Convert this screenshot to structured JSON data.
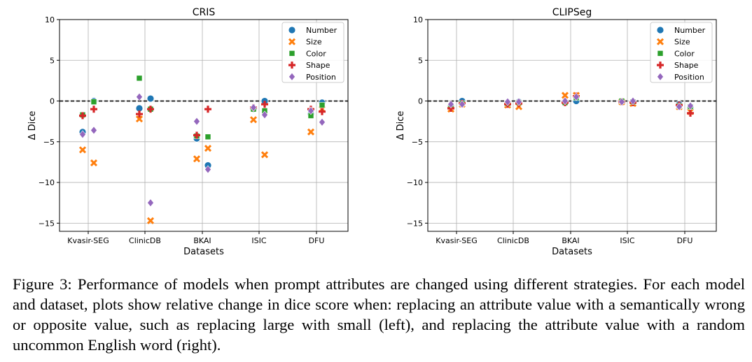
{
  "chart_data": [
    {
      "type": "scatter",
      "title": "CRIS",
      "xlabel": "Datasets",
      "ylabel": "Δ Dice",
      "categories": [
        "Kvasir-SEG",
        "ClinicDB",
        "BKAI",
        "ISIC",
        "DFU"
      ],
      "ylim": [
        -16,
        10
      ],
      "yticks": [
        10,
        5,
        0,
        -5,
        -10,
        -15
      ],
      "grid": true,
      "reference_line": 0,
      "legend_position": "top-right",
      "series": [
        {
          "name": "Number",
          "marker": "circle",
          "color": "#1f77b4",
          "points": [
            {
              "category": "Kvasir-SEG",
              "offset": -1,
              "y": -3.8
            },
            {
              "category": "Kvasir-SEG",
              "offset": 1,
              "y": 0.0
            },
            {
              "category": "ClinicDB",
              "offset": -1,
              "y": -0.9
            },
            {
              "category": "ClinicDB",
              "offset": 1,
              "y": 0.3
            },
            {
              "category": "BKAI",
              "offset": -1,
              "y": -4.6
            },
            {
              "category": "BKAI",
              "offset": 1,
              "y": -7.9
            },
            {
              "category": "ISIC",
              "offset": -1,
              "y": -1.0
            },
            {
              "category": "ISIC",
              "offset": 1,
              "y": 0.0
            },
            {
              "category": "DFU",
              "offset": -1,
              "y": -1.6
            },
            {
              "category": "DFU",
              "offset": 1,
              "y": -0.2
            }
          ]
        },
        {
          "name": "Size",
          "marker": "x",
          "color": "#ff7f0e",
          "points": [
            {
              "category": "Kvasir-SEG",
              "offset": -1,
              "y": -6.0
            },
            {
              "category": "Kvasir-SEG",
              "offset": 1,
              "y": -7.6
            },
            {
              "category": "ClinicDB",
              "offset": -1,
              "y": -2.2
            },
            {
              "category": "ClinicDB",
              "offset": 1,
              "y": -14.7
            },
            {
              "category": "BKAI",
              "offset": -1,
              "y": -7.1
            },
            {
              "category": "BKAI",
              "offset": 1,
              "y": -5.8
            },
            {
              "category": "ISIC",
              "offset": -1,
              "y": -2.3
            },
            {
              "category": "ISIC",
              "offset": 1,
              "y": -6.6
            },
            {
              "category": "DFU",
              "offset": -1,
              "y": -3.8
            },
            {
              "category": "DFU",
              "offset": 1,
              "y": -1.0
            }
          ]
        },
        {
          "name": "Color",
          "marker": "square",
          "color": "#2ca02c",
          "points": [
            {
              "category": "Kvasir-SEG",
              "offset": -1,
              "y": -1.7
            },
            {
              "category": "Kvasir-SEG",
              "offset": 1,
              "y": -0.1
            },
            {
              "category": "ClinicDB",
              "offset": -1,
              "y": 2.8
            },
            {
              "category": "ClinicDB",
              "offset": 1,
              "y": -1.0
            },
            {
              "category": "BKAI",
              "offset": -1,
              "y": -4.3
            },
            {
              "category": "BKAI",
              "offset": 1,
              "y": -4.4
            },
            {
              "category": "ISIC",
              "offset": -1,
              "y": -1.0
            },
            {
              "category": "ISIC",
              "offset": 1,
              "y": -1.2
            },
            {
              "category": "DFU",
              "offset": -1,
              "y": -1.8
            },
            {
              "category": "DFU",
              "offset": 1,
              "y": -0.5
            }
          ]
        },
        {
          "name": "Shape",
          "marker": "plus",
          "color": "#d62728",
          "points": [
            {
              "category": "Kvasir-SEG",
              "offset": -1,
              "y": -1.8
            },
            {
              "category": "Kvasir-SEG",
              "offset": 1,
              "y": -1.0
            },
            {
              "category": "ClinicDB",
              "offset": -1,
              "y": -1.6
            },
            {
              "category": "ClinicDB",
              "offset": 1,
              "y": -1.0
            },
            {
              "category": "BKAI",
              "offset": -1,
              "y": -4.2
            },
            {
              "category": "BKAI",
              "offset": 1,
              "y": -1.0
            },
            {
              "category": "ISIC",
              "offset": -1,
              "y": -0.8
            },
            {
              "category": "ISIC",
              "offset": 1,
              "y": -0.4
            },
            {
              "category": "DFU",
              "offset": -1,
              "y": -1.0
            },
            {
              "category": "DFU",
              "offset": 1,
              "y": -1.3
            }
          ]
        },
        {
          "name": "Position",
          "marker": "diamond",
          "color": "#9467bd",
          "points": [
            {
              "category": "Kvasir-SEG",
              "offset": -1,
              "y": -4.1
            },
            {
              "category": "Kvasir-SEG",
              "offset": 1,
              "y": -3.6
            },
            {
              "category": "ClinicDB",
              "offset": -1,
              "y": 0.5
            },
            {
              "category": "ClinicDB",
              "offset": 1,
              "y": -12.5
            },
            {
              "category": "BKAI",
              "offset": -1,
              "y": -2.5
            },
            {
              "category": "BKAI",
              "offset": 1,
              "y": -8.4
            },
            {
              "category": "ISIC",
              "offset": -1,
              "y": -0.8
            },
            {
              "category": "ISIC",
              "offset": 1,
              "y": -1.7
            },
            {
              "category": "DFU",
              "offset": -1,
              "y": -1.2
            },
            {
              "category": "DFU",
              "offset": 1,
              "y": -2.6
            }
          ]
        }
      ]
    },
    {
      "type": "scatter",
      "title": "CLIPSeg",
      "xlabel": "Datasets",
      "ylabel": "Δ Dice",
      "categories": [
        "Kvasir-SEG",
        "ClinicDB",
        "BKAI",
        "ISIC",
        "DFU"
      ],
      "ylim": [
        -16,
        10
      ],
      "yticks": [
        10,
        5,
        0,
        -5,
        -10,
        -15
      ],
      "grid": true,
      "reference_line": 0,
      "legend_position": "top-right",
      "series": [
        {
          "name": "Number",
          "marker": "circle",
          "color": "#1f77b4",
          "points": [
            {
              "category": "Kvasir-SEG",
              "offset": -1,
              "y": -0.6
            },
            {
              "category": "Kvasir-SEG",
              "offset": 1,
              "y": 0.0
            },
            {
              "category": "ClinicDB",
              "offset": -1,
              "y": -0.2
            },
            {
              "category": "ClinicDB",
              "offset": 1,
              "y": -0.1
            },
            {
              "category": "BKAI",
              "offset": -1,
              "y": -0.1
            },
            {
              "category": "BKAI",
              "offset": 1,
              "y": 0.0
            },
            {
              "category": "ISIC",
              "offset": -1,
              "y": -0.1
            },
            {
              "category": "ISIC",
              "offset": 1,
              "y": -0.1
            },
            {
              "category": "DFU",
              "offset": -1,
              "y": -0.4
            },
            {
              "category": "DFU",
              "offset": 1,
              "y": -0.8
            }
          ]
        },
        {
          "name": "Size",
          "marker": "x",
          "color": "#ff7f0e",
          "points": [
            {
              "category": "Kvasir-SEG",
              "offset": -1,
              "y": -1.0
            },
            {
              "category": "Kvasir-SEG",
              "offset": 1,
              "y": -0.4
            },
            {
              "category": "ClinicDB",
              "offset": -1,
              "y": -0.5
            },
            {
              "category": "ClinicDB",
              "offset": 1,
              "y": -0.7
            },
            {
              "category": "BKAI",
              "offset": -1,
              "y": 0.7
            },
            {
              "category": "BKAI",
              "offset": 1,
              "y": 0.7
            },
            {
              "category": "ISIC",
              "offset": -1,
              "y": -0.1
            },
            {
              "category": "ISIC",
              "offset": 1,
              "y": -0.3
            },
            {
              "category": "DFU",
              "offset": -1,
              "y": -0.7
            },
            {
              "category": "DFU",
              "offset": 1,
              "y": -1.3
            }
          ]
        },
        {
          "name": "Color",
          "marker": "square",
          "color": "#2ca02c",
          "points": [
            {
              "category": "Kvasir-SEG",
              "offset": -1,
              "y": -0.7
            },
            {
              "category": "Kvasir-SEG",
              "offset": 1,
              "y": -0.3
            },
            {
              "category": "ClinicDB",
              "offset": -1,
              "y": -0.3
            },
            {
              "category": "ClinicDB",
              "offset": 1,
              "y": -0.2
            },
            {
              "category": "BKAI",
              "offset": -1,
              "y": -0.2
            },
            {
              "category": "BKAI",
              "offset": 1,
              "y": 0.4
            },
            {
              "category": "ISIC",
              "offset": -1,
              "y": 0.0
            },
            {
              "category": "ISIC",
              "offset": 1,
              "y": -0.1
            },
            {
              "category": "DFU",
              "offset": -1,
              "y": -0.6
            },
            {
              "category": "DFU",
              "offset": 1,
              "y": -0.7
            }
          ]
        },
        {
          "name": "Shape",
          "marker": "plus",
          "color": "#d62728",
          "points": [
            {
              "category": "Kvasir-SEG",
              "offset": -1,
              "y": -0.9
            },
            {
              "category": "Kvasir-SEG",
              "offset": 1,
              "y": -0.3
            },
            {
              "category": "ClinicDB",
              "offset": -1,
              "y": -0.4
            },
            {
              "category": "ClinicDB",
              "offset": 1,
              "y": -0.3
            },
            {
              "category": "BKAI",
              "offset": -1,
              "y": -0.2
            },
            {
              "category": "BKAI",
              "offset": 1,
              "y": 0.6
            },
            {
              "category": "ISIC",
              "offset": -1,
              "y": -0.1
            },
            {
              "category": "ISIC",
              "offset": 1,
              "y": -0.2
            },
            {
              "category": "DFU",
              "offset": -1,
              "y": -0.5
            },
            {
              "category": "DFU",
              "offset": 1,
              "y": -1.5
            }
          ]
        },
        {
          "name": "Position",
          "marker": "diamond",
          "color": "#9467bd",
          "points": [
            {
              "category": "Kvasir-SEG",
              "offset": -1,
              "y": -0.4
            },
            {
              "category": "Kvasir-SEG",
              "offset": 1,
              "y": -0.4
            },
            {
              "category": "ClinicDB",
              "offset": -1,
              "y": -0.1
            },
            {
              "category": "ClinicDB",
              "offset": 1,
              "y": -0.1
            },
            {
              "category": "BKAI",
              "offset": -1,
              "y": 0.0
            },
            {
              "category": "BKAI",
              "offset": 1,
              "y": 0.5
            },
            {
              "category": "ISIC",
              "offset": -1,
              "y": -0.1
            },
            {
              "category": "ISIC",
              "offset": 1,
              "y": 0.0
            },
            {
              "category": "DFU",
              "offset": -1,
              "y": -0.7
            },
            {
              "category": "DFU",
              "offset": 1,
              "y": -0.6
            }
          ]
        }
      ]
    }
  ],
  "caption": {
    "label": "Figure 3:",
    "text": "Performance of models when prompt attributes are changed using different strategies. For each model and dataset, plots show relative change in dice score when: replacing an attribute value with a semantically wrong or opposite value, such as replacing large with small (left), and replacing the attribute value with a random uncommon English word (right)."
  }
}
